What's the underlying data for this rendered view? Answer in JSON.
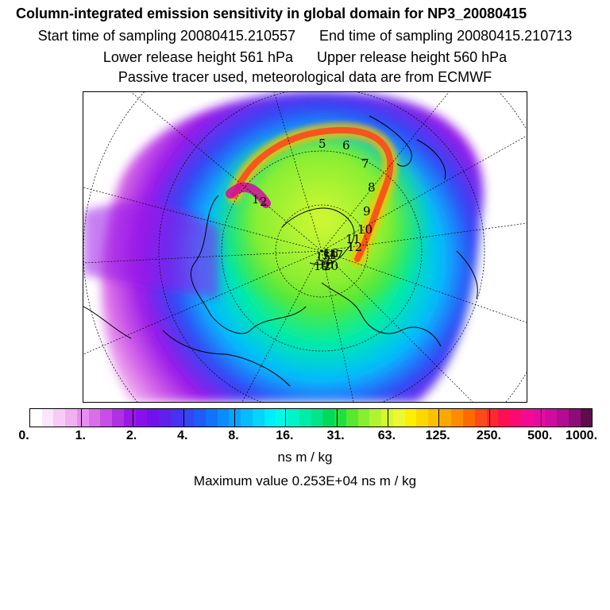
{
  "title": "Column-integrated emission sensitivity in global domain for NP3_20080415",
  "sampling": {
    "start_label": "Start time of sampling 20080415.210557",
    "end_label": "End time of sampling 20080415.210713"
  },
  "release": {
    "lower_label": "Lower release height  561 hPa",
    "upper_label": "Upper release height  560 hPa"
  },
  "tracer_note": "Passive tracer used, meteorological data are from ECMWF",
  "map": {
    "projection": "polar-stereographic",
    "track_labels": [
      "1",
      "2",
      "5",
      "6",
      "7",
      "8",
      "9",
      "10",
      "11",
      "12",
      "14",
      "15",
      "16",
      "17",
      "18",
      "19",
      "20"
    ]
  },
  "colorbar": {
    "ticks": [
      "0.",
      "1.",
      "2.",
      "4.",
      "8.",
      "16.",
      "31.",
      "63.",
      "125.",
      "250.",
      "500.",
      "1000."
    ],
    "colors": [
      "#ffffff",
      "#fbe6fb",
      "#f6ccf6",
      "#f0b0f2",
      "#e68ef0",
      "#da6ee8",
      "#c84ee6",
      "#b030e6",
      "#9a18e8",
      "#8a10ea",
      "#7410ec",
      "#5e20ee",
      "#4a30f0",
      "#3246f4",
      "#1e5cf8",
      "#0f74fa",
      "#0a8cfc",
      "#08a4fe",
      "#06bcfe",
      "#04d4fe",
      "#00eefe",
      "#00fae8",
      "#00f4c8",
      "#00eca8",
      "#00e48a",
      "#00da5a",
      "#20e040",
      "#58e830",
      "#88ee30",
      "#b0f430",
      "#d2f830",
      "#ecf830",
      "#fcf000",
      "#fcd800",
      "#fcc000",
      "#fca800",
      "#fc8c00",
      "#fc6a00",
      "#fc4a1a",
      "#fc2a30",
      "#fc1050",
      "#fc0a74",
      "#f40a92",
      "#e40c9e",
      "#d00c9e",
      "#b40c90",
      "#8e0c78",
      "#600a50"
    ],
    "unit": "ns m / kg"
  },
  "max_value": "Maximum value  0.253E+04 ns m / kg",
  "colors": {
    "coast": "#000000",
    "track_high": "#fc1050",
    "track_mid": "#fcc000"
  }
}
